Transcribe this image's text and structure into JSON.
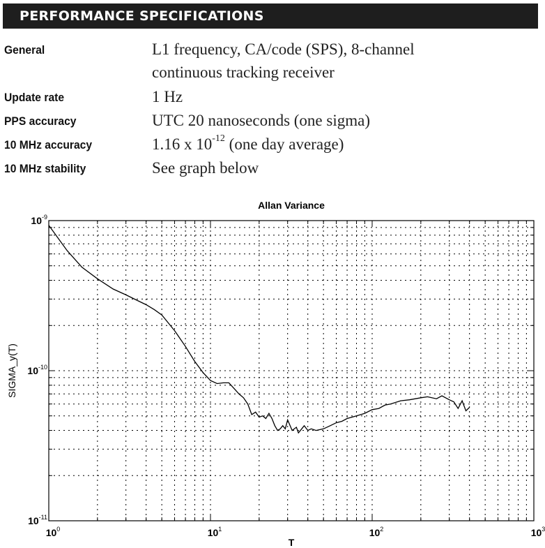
{
  "header": {
    "title": "PERFORMANCE SPECIFICATIONS"
  },
  "specs": [
    {
      "label": "General",
      "value_line1": "L1 frequency, CA/code (SPS), 8-channel",
      "value_line2": "continuous tracking receiver"
    },
    {
      "label": "Update rate",
      "value": "1 Hz"
    },
    {
      "label": "PPS accuracy",
      "value": "UTC 20 nanoseconds (one sigma)"
    },
    {
      "label": "10 MHz accuracy",
      "value_pre": "1.16 x 10",
      "value_sup": "-12",
      "value_post": " (one day average)"
    },
    {
      "label": "10 MHz stability",
      "value": "See graph below"
    }
  ],
  "chart_data": {
    "type": "line",
    "title": "Allan Variance",
    "xlabel": "T",
    "ylabel": "SIGMA_y(T)",
    "xscale": "log",
    "yscale": "log",
    "xlim": [
      1,
      1000
    ],
    "ylim": [
      1e-11,
      1e-09
    ],
    "grid": true,
    "x_tick_labels": [
      {
        "base": "10",
        "exp": "0"
      },
      {
        "base": "10",
        "exp": "1"
      },
      {
        "base": "10",
        "exp": "2"
      },
      {
        "base": "10",
        "exp": "3"
      }
    ],
    "y_tick_labels": [
      {
        "base": "10",
        "exp": "-11"
      },
      {
        "base": "10",
        "exp": "-10"
      },
      {
        "base": "10",
        "exp": "-9"
      }
    ],
    "series": [
      {
        "x": [
          1,
          1.3,
          1.6,
          2,
          2.5,
          3,
          3.5,
          4,
          4.5,
          5,
          6,
          7,
          8,
          9,
          10,
          11,
          12,
          13,
          14,
          15,
          16,
          17,
          18,
          19,
          20,
          21,
          22,
          23,
          24,
          25,
          26,
          27,
          28,
          29,
          30,
          32,
          34,
          35,
          36,
          38,
          40,
          42,
          45,
          50,
          55,
          60,
          65,
          70,
          80,
          90,
          100,
          110,
          120,
          130,
          150,
          170,
          200,
          220,
          250,
          270,
          300,
          320,
          340,
          360,
          380,
          400
        ],
        "y": [
          9.3e-10,
          6.3e-10,
          4.9e-10,
          4.1e-10,
          3.5e-10,
          3.2e-10,
          2.95e-10,
          2.75e-10,
          2.55e-10,
          2.35e-10,
          1.85e-10,
          1.45e-10,
          1.15e-10,
          9.7e-11,
          8.6e-11,
          8.2e-11,
          8.3e-11,
          8.3e-11,
          7.6e-11,
          7e-11,
          6.6e-11,
          6e-11,
          5.1e-11,
          5.3e-11,
          4.9e-11,
          5e-11,
          4.8e-11,
          5.2e-11,
          4.8e-11,
          4.3e-11,
          4e-11,
          4.1e-11,
          4.3e-11,
          4.1e-11,
          4.7e-11,
          4e-11,
          4.2e-11,
          3.85e-11,
          4e-11,
          4.3e-11,
          4e-11,
          4.1e-11,
          4e-11,
          4.1e-11,
          4.3e-11,
          4.5e-11,
          4.6e-11,
          4.8e-11,
          5e-11,
          5.2e-11,
          5.5e-11,
          5.6e-11,
          5.9e-11,
          6e-11,
          6.3e-11,
          6.4e-11,
          6.6e-11,
          6.7e-11,
          6.5e-11,
          6.8e-11,
          6.4e-11,
          6.2e-11,
          5.6e-11,
          6.3e-11,
          5.4e-11,
          5.7e-11
        ]
      }
    ]
  }
}
